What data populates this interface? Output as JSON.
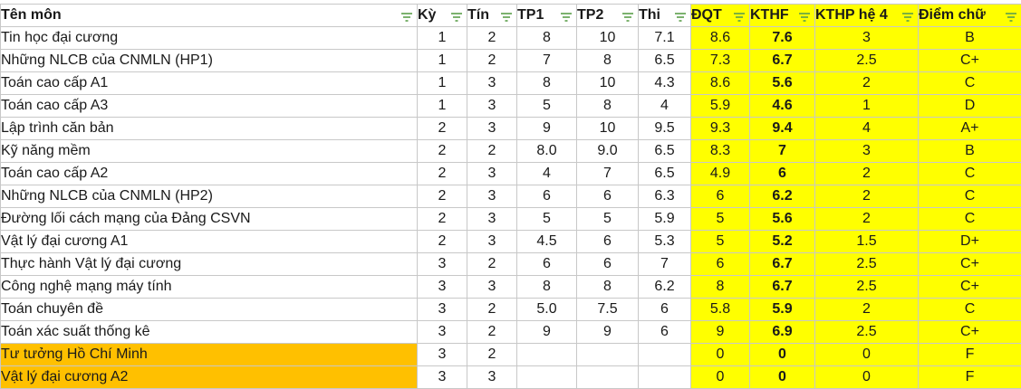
{
  "headers": {
    "name": "Tên môn",
    "ky": "Kỳ",
    "tin": "Tín",
    "tp1": "TP1",
    "tp2": "TP2",
    "thi": "Thi",
    "dqt": "ĐQT",
    "kthp": "KTHF",
    "kthp4": "KTHP hệ 4",
    "diemchu": "Điểm chữ"
  },
  "colors": {
    "highlight_yellow": "#ffff00",
    "highlight_orange": "#ffc000",
    "filter_green": "#5b9e4b"
  },
  "rows": [
    {
      "name": "Tin học đại cương",
      "ky": "1",
      "tin": "2",
      "tp1": "8",
      "tp2": "10",
      "thi": "7.1",
      "dqt": "8.6",
      "kthp": "7.6",
      "kthp4": "3",
      "diemchu": "B"
    },
    {
      "name": "Những NLCB của CNMLN (HP1)",
      "ky": "1",
      "tin": "2",
      "tp1": "7",
      "tp2": "8",
      "thi": "6.5",
      "dqt": "7.3",
      "kthp": "6.7",
      "kthp4": "2.5",
      "diemchu": "C+"
    },
    {
      "name": "Toán cao cấp A1",
      "ky": "1",
      "tin": "3",
      "tp1": "8",
      "tp2": "10",
      "thi": "4.3",
      "dqt": "8.6",
      "kthp": "5.6",
      "kthp4": "2",
      "diemchu": "C"
    },
    {
      "name": "Toán cao cấp A3",
      "ky": "1",
      "tin": "3",
      "tp1": "5",
      "tp2": "8",
      "thi": "4",
      "dqt": "5.9",
      "kthp": "4.6",
      "kthp4": "1",
      "diemchu": "D"
    },
    {
      "name": "Lập trình căn bản",
      "ky": "2",
      "tin": "3",
      "tp1": "9",
      "tp2": "10",
      "thi": "9.5",
      "dqt": "9.3",
      "kthp": "9.4",
      "kthp4": "4",
      "diemchu": "A+"
    },
    {
      "name": "Kỹ năng mềm",
      "ky": "2",
      "tin": "2",
      "tp1": "8.0",
      "tp2": "9.0",
      "thi": "6.5",
      "dqt": "8.3",
      "kthp": "7",
      "kthp4": "3",
      "diemchu": "B"
    },
    {
      "name": "Toán cao cấp A2",
      "ky": "2",
      "tin": "3",
      "tp1": "4",
      "tp2": "7",
      "thi": "6.5",
      "dqt": "4.9",
      "kthp": "6",
      "kthp4": "2",
      "diemchu": "C"
    },
    {
      "name": "Những NLCB của CNMLN (HP2)",
      "ky": "2",
      "tin": "3",
      "tp1": "6",
      "tp2": "6",
      "thi": "6.3",
      "dqt": "6",
      "kthp": "6.2",
      "kthp4": "2",
      "diemchu": "C"
    },
    {
      "name": "Đường lối cách mạng của Đảng CSVN",
      "ky": "2",
      "tin": "3",
      "tp1": "5",
      "tp2": "5",
      "thi": "5.9",
      "dqt": "5",
      "kthp": "5.6",
      "kthp4": "2",
      "diemchu": "C"
    },
    {
      "name": "Vật lý đại cương A1",
      "ky": "2",
      "tin": "3",
      "tp1": "4.5",
      "tp2": "6",
      "thi": "5.3",
      "dqt": "5",
      "kthp": "5.2",
      "kthp4": "1.5",
      "diemchu": "D+"
    },
    {
      "name": "Thực hành Vật lý đại cương",
      "ky": "3",
      "tin": "2",
      "tp1": "6",
      "tp2": "6",
      "thi": "7",
      "dqt": "6",
      "kthp": "6.7",
      "kthp4": "2.5",
      "diemchu": "C+"
    },
    {
      "name": "Công nghệ mạng máy tính",
      "ky": "3",
      "tin": "3",
      "tp1": "8",
      "tp2": "8",
      "thi": "6.2",
      "dqt": "8",
      "kthp": "6.7",
      "kthp4": "2.5",
      "diemchu": "C+"
    },
    {
      "name": "Toán chuyên đề",
      "ky": "3",
      "tin": "2",
      "tp1": "5.0",
      "tp2": "7.5",
      "thi": "6",
      "dqt": "5.8",
      "kthp": "5.9",
      "kthp4": "2",
      "diemchu": "C"
    },
    {
      "name": "Toán xác suất thống kê",
      "ky": "3",
      "tin": "2",
      "tp1": "9",
      "tp2": "9",
      "thi": "6",
      "dqt": "9",
      "kthp": "6.9",
      "kthp4": "2.5",
      "diemchu": "C+"
    },
    {
      "name": "Tư tưởng Hồ Chí Minh",
      "ky": "3",
      "tin": "2",
      "tp1": "",
      "tp2": "",
      "thi": "",
      "dqt": "0",
      "kthp": "0",
      "kthp4": "0",
      "diemchu": "F",
      "highlight": "orange"
    },
    {
      "name": "Vật lý đại cương A2",
      "ky": "3",
      "tin": "3",
      "tp1": "",
      "tp2": "",
      "thi": "",
      "dqt": "0",
      "kthp": "0",
      "kthp4": "0",
      "diemchu": "F",
      "highlight": "orange"
    }
  ]
}
